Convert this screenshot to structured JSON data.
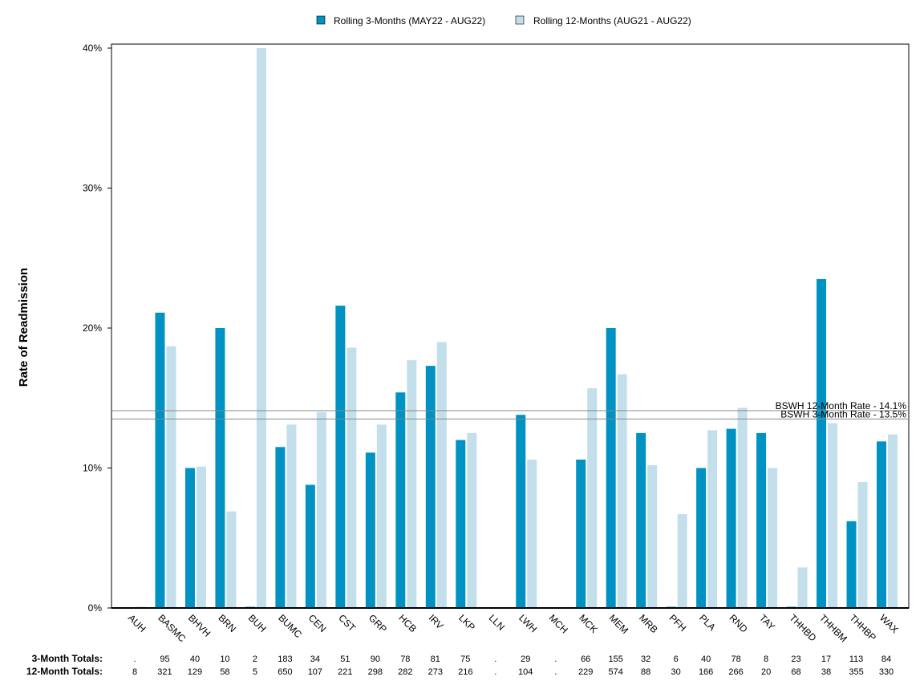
{
  "chart_data": {
    "type": "bar",
    "ylabel": "Rate of Readmission",
    "ylim": [
      0,
      40
    ],
    "yticks": [
      "0%",
      "10%",
      "20%",
      "30%",
      "40%"
    ],
    "categories": [
      "AUH",
      "BASMC",
      "BHVH",
      "BRN",
      "BUH",
      "BUMC",
      "CEN",
      "CST",
      "GRP",
      "HCB",
      "IRV",
      "LKP",
      "LLN",
      "LWH",
      "MCH",
      "MCK",
      "MEM",
      "MRB",
      "PFH",
      "PLA",
      "RND",
      "TAY",
      "THHBD",
      "THHBM",
      "THHBP",
      "WAX"
    ],
    "series": [
      {
        "name": "Rolling 3-Months (MAY22 - AUG22)",
        "color": "#0092c2",
        "values": [
          null,
          21.1,
          10.0,
          20.0,
          0.0,
          11.5,
          8.8,
          21.6,
          11.1,
          15.4,
          17.3,
          12.0,
          null,
          13.8,
          null,
          10.6,
          20.0,
          12.5,
          0.0,
          10.0,
          12.8,
          12.5,
          0.0,
          23.5,
          6.2,
          11.9
        ]
      },
      {
        "name": "Rolling 12-Months (AUG21 - AUG22)",
        "color": "#c2dfeb",
        "values": [
          0.0,
          18.7,
          10.1,
          6.9,
          40.0,
          13.1,
          14.0,
          18.6,
          13.1,
          17.7,
          19.0,
          12.5,
          null,
          10.6,
          null,
          15.7,
          16.7,
          10.2,
          6.7,
          12.7,
          14.3,
          10.0,
          2.9,
          13.2,
          9.0,
          12.4
        ]
      }
    ],
    "reference_lines": [
      {
        "label": "BSWH 12-Month Rate - 14.1%",
        "value": 14.1
      },
      {
        "label": "BSWH  3-Month Rate - 13.5%",
        "value": 13.5
      }
    ],
    "legend_position": "top-center",
    "grid": false,
    "totals": {
      "labels": [
        "3-Month Totals:",
        "12-Month Totals:"
      ],
      "three_month": [
        ".",
        "95",
        "40",
        "10",
        "2",
        "183",
        "34",
        "51",
        "90",
        "78",
        "81",
        "75",
        ".",
        "29",
        ".",
        "66",
        "155",
        "32",
        "6",
        "40",
        "78",
        "8",
        "23",
        "17",
        "113",
        "84"
      ],
      "twelve_month": [
        "8",
        "321",
        "129",
        "58",
        "5",
        "650",
        "107",
        "221",
        "298",
        "282",
        "273",
        "216",
        ".",
        "104",
        ".",
        "229",
        "574",
        "88",
        "30",
        "166",
        "266",
        "20",
        "68",
        "38",
        "355",
        "330"
      ]
    }
  }
}
